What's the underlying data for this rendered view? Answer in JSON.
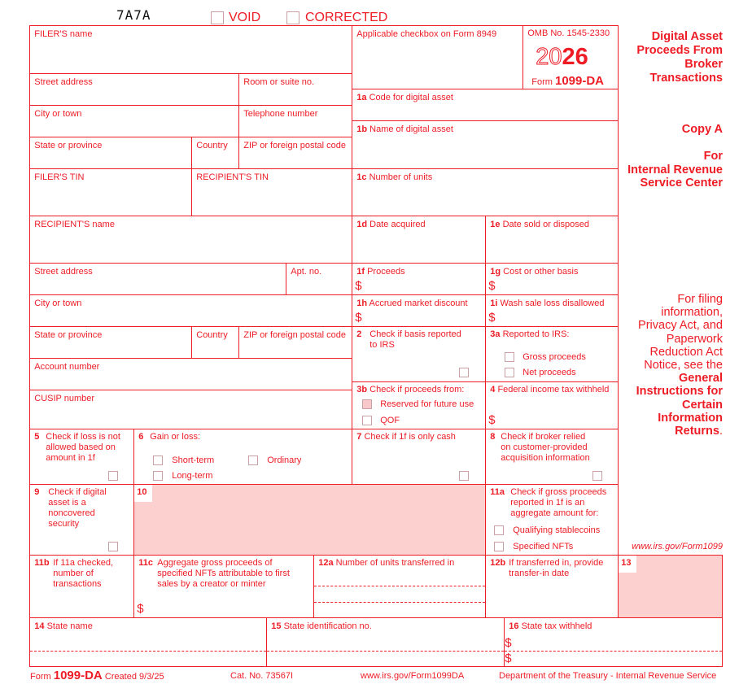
{
  "header": {
    "code": "7A7A",
    "void_label": "VOID",
    "corrected_label": "CORRECTED"
  },
  "filer": {
    "name": "FILER'S name",
    "street": "Street address",
    "room": "Room or suite no.",
    "city": "City or town",
    "telephone": "Telephone number",
    "state": "State or province",
    "country": "Country",
    "zip": "ZIP or foreign postal code",
    "filer_tin": "FILER'S TIN",
    "recipient_tin": "RECIPIENT'S TIN"
  },
  "recipient": {
    "name": "RECIPIENT'S name",
    "street": "Street address",
    "apt": "Apt. no.",
    "city": "City or town",
    "state": "State or province",
    "country": "Country",
    "zip": "ZIP or foreign postal code",
    "account": "Account number",
    "cusip": "CUSIP number"
  },
  "top": {
    "applicable": "Applicable checkbox on Form 8949",
    "omb": "OMB No. 1545-2330",
    "year_outline": "20",
    "year_bold": "26",
    "form_prefix": "Form",
    "form_name": "1099-DA"
  },
  "title": {
    "main": "Digital Asset\nProceeds From\nBroker\nTransactions",
    "copy": "Copy A",
    "for": "For\nInternal Revenue\nService Center",
    "notice": "For filing\ninformation,\nPrivacy Act, and\nPaperwork\nReduction Act\nNotice, see the",
    "notice_bold": "General\nInstructions for\nCertain\nInformation\nReturns",
    "notice_end": ".",
    "url": "www.irs.gov/Form1099"
  },
  "boxes": {
    "b1a": {
      "num": "1a",
      "label": "Code for digital asset"
    },
    "b1b": {
      "num": "1b",
      "label": "Name of digital asset"
    },
    "b1c": {
      "num": "1c",
      "label": "Number of units"
    },
    "b1d": {
      "num": "1d",
      "label": "Date acquired"
    },
    "b1e": {
      "num": "1e",
      "label": "Date sold or disposed"
    },
    "b1f": {
      "num": "1f",
      "label": "Proceeds"
    },
    "b1g": {
      "num": "1g",
      "label": "Cost or other basis"
    },
    "b1h": {
      "num": "1h",
      "label": "Accrued market discount"
    },
    "b1i": {
      "num": "1i",
      "label": " Wash sale loss disallowed"
    },
    "b2": {
      "num": "2",
      "label": "Check if basis reported\nto IRS"
    },
    "b3a": {
      "num": "3a",
      "label": "Reported to IRS:",
      "opt1": "Gross proceeds",
      "opt2": "Net proceeds"
    },
    "b3b": {
      "num": "3b",
      "label": "Check if proceeds from:",
      "opt1": "Reserved for future use",
      "opt2": "QOF"
    },
    "b4": {
      "num": "4",
      "label": "Federal income tax withheld"
    },
    "b5": {
      "num": "5",
      "label": "Check if loss is not\nallowed based on\namount in 1f"
    },
    "b6": {
      "num": "6",
      "label": "Gain or loss:",
      "opt1": "Short-term",
      "opt2": "Long-term",
      "opt3": "Ordinary"
    },
    "b7": {
      "num": "7",
      "label": "Check if 1f is only cash"
    },
    "b8": {
      "num": "8",
      "label": "Check if broker relied\non customer-provided\nacquisition information"
    },
    "b9": {
      "num": "9",
      "label": "Check if digital\nasset is a\nnoncovered\nsecurity"
    },
    "b10": {
      "num": "10"
    },
    "b11a": {
      "num": "11a",
      "label": "Check if gross proceeds\nreported in 1f is an\naggregate amount for:",
      "opt1": "Qualifying stablecoins",
      "opt2": "Specified NFTs"
    },
    "b11b": {
      "num": "11b",
      "label": "If 11a checked,\nnumber of\ntransactions"
    },
    "b11c": {
      "num": "11c",
      "label": "Aggregate gross proceeds of\nspecified NFTs attributable to first\nsales by a creator or minter"
    },
    "b12a": {
      "num": "12a",
      "label": "Number of units transferred in"
    },
    "b12b": {
      "num": "12b",
      "label": "If transferred in, provide\ntransfer-in date"
    },
    "b13": {
      "num": "13"
    },
    "b14": {
      "num": "14",
      "label": "State name"
    },
    "b15": {
      "num": "15",
      "label": "State identification no."
    },
    "b16": {
      "num": "16",
      "label": "State tax withheld"
    }
  },
  "dollar": "$",
  "footer": {
    "form_prefix": "Form",
    "form_name": "1099-DA",
    "created": "Created 9/3/25",
    "cat": "Cat. No. 73567I",
    "url": "www.irs.gov/Form1099DA",
    "dept": "Department of the Treasury - Internal Revenue Service"
  }
}
